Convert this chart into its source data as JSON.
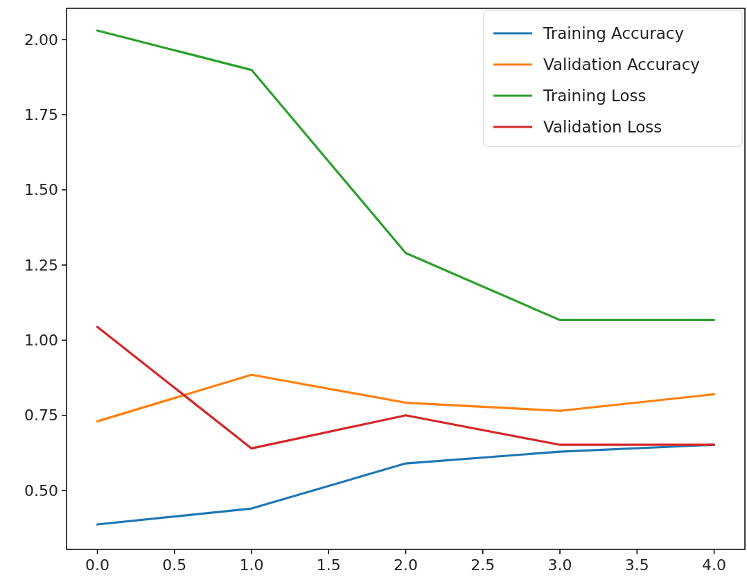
{
  "chart_data": {
    "type": "line",
    "x": [
      0,
      1,
      2,
      3,
      4
    ],
    "series": [
      {
        "name": "Training Accuracy",
        "color": "#1f77b4",
        "values": [
          0.387,
          0.44,
          0.59,
          0.629,
          0.652
        ]
      },
      {
        "name": "Validation Accuracy",
        "color": "#ff7f0e",
        "values": [
          0.73,
          0.885,
          0.792,
          0.765,
          0.82
        ]
      },
      {
        "name": "Training Loss",
        "color": "#2ca02c",
        "values": [
          2.03,
          1.899,
          1.29,
          1.067,
          1.067
        ]
      },
      {
        "name": "Validation Loss",
        "color": "#d62728",
        "values": [
          1.044,
          0.64,
          0.75,
          0.652,
          0.652
        ]
      }
    ],
    "xlim": [
      -0.2,
      4.2
    ],
    "ylim": [
      0.304,
      2.104
    ],
    "xticks": [
      {
        "value": 0,
        "label": "0.0"
      },
      {
        "value": 0.5,
        "label": "0.5"
      },
      {
        "value": 1,
        "label": "1.0"
      },
      {
        "value": 1.5,
        "label": "1.5"
      },
      {
        "value": 2,
        "label": "2.0"
      },
      {
        "value": 2.5,
        "label": "2.5"
      },
      {
        "value": 3,
        "label": "3.0"
      },
      {
        "value": 3.5,
        "label": "3.5"
      },
      {
        "value": 4,
        "label": "4.0"
      }
    ],
    "yticks": [
      {
        "value": 0.5,
        "label": "0.50"
      },
      {
        "value": 0.75,
        "label": "0.75"
      },
      {
        "value": 1,
        "label": "1.00"
      },
      {
        "value": 1.25,
        "label": "1.25"
      },
      {
        "value": 1.5,
        "label": "1.50"
      },
      {
        "value": 1.75,
        "label": "1.75"
      },
      {
        "value": 2,
        "label": "2.00"
      }
    ],
    "legend": "top right",
    "grid": false,
    "marker": "none",
    "line_style": "solid"
  }
}
